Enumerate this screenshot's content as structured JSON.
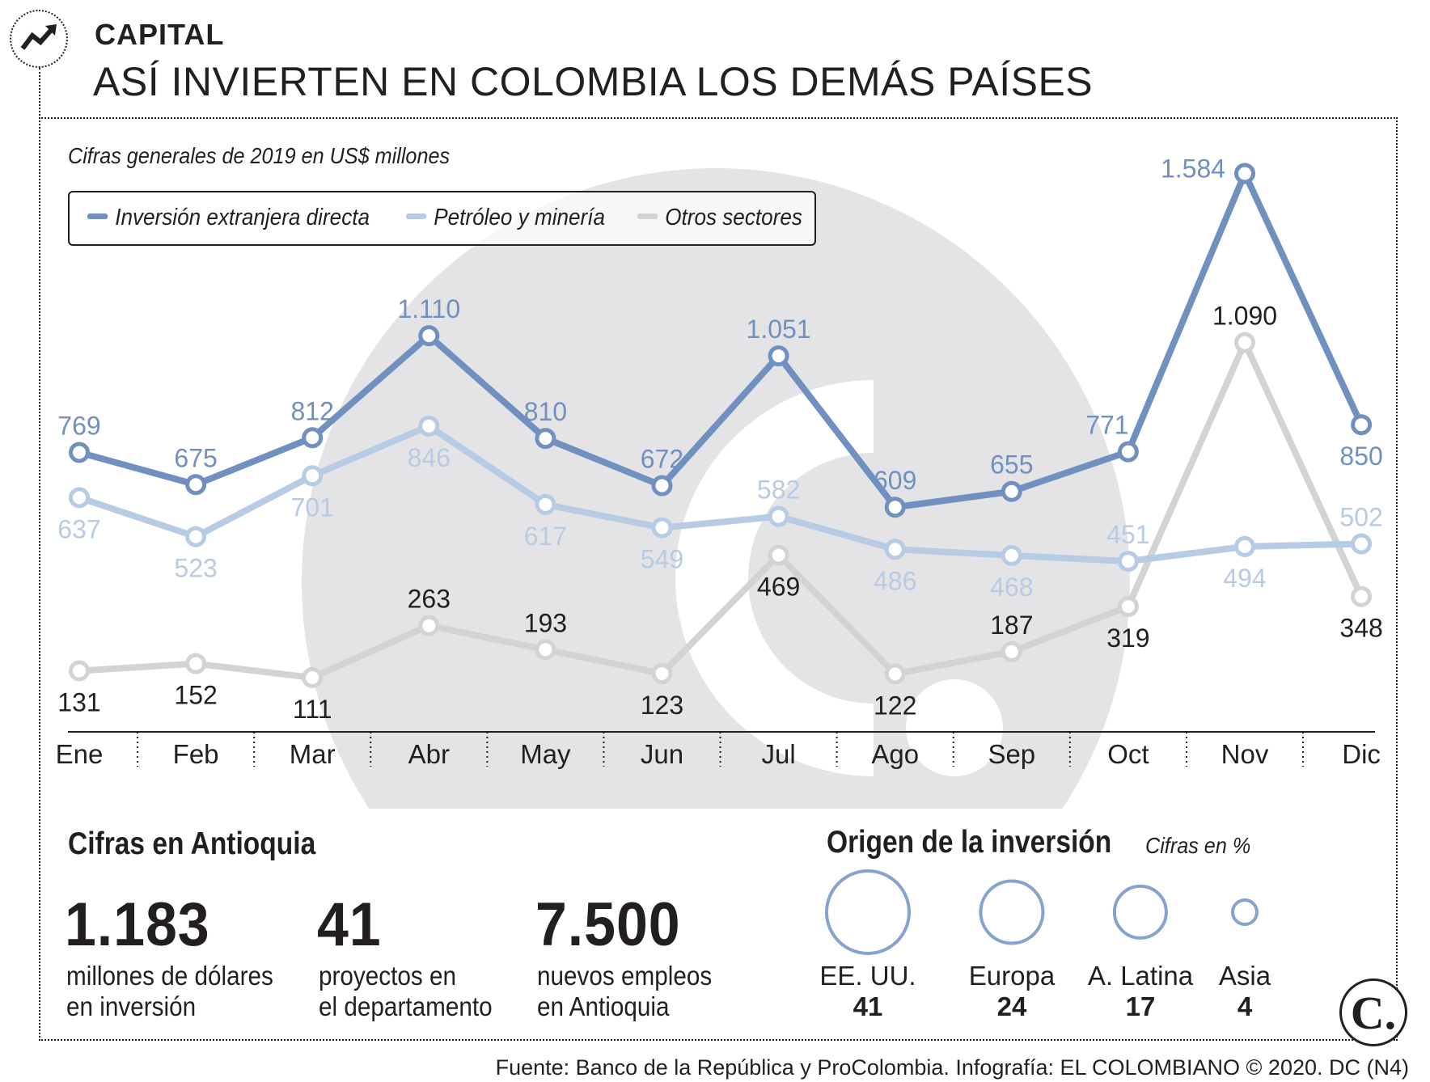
{
  "header": {
    "section": "CAPITAL",
    "title": "ASÍ INVIERTEN EN COLOMBIA LOS DEMÁS PAÍSES",
    "subtitle": "Cifras generales de 2019 en US$ millones"
  },
  "colors": {
    "ied": "#7090c0",
    "petroleo": "#b8cbe4",
    "otros": "#d3d3d6",
    "text": "#231f20",
    "watermark": "#e4e4e6"
  },
  "chart_data": {
    "type": "line",
    "title": "ASÍ INVIERTEN EN COLOMBIA LOS DEMÁS PAÍSES",
    "subtitle": "Cifras generales de 2019 en US$ millones",
    "categories": [
      "Ene",
      "Feb",
      "Mar",
      "Abr",
      "May",
      "Jun",
      "Jul",
      "Ago",
      "Sep",
      "Oct",
      "Nov",
      "Dic"
    ],
    "series": [
      {
        "name": "Inversión extranjera directa",
        "values": [
          769,
          675,
          812,
          1110,
          810,
          672,
          1051,
          609,
          655,
          771,
          1584,
          850
        ],
        "labels": [
          "769",
          "675",
          "812",
          "1.110",
          "810",
          "672",
          "1.051",
          "609",
          "655",
          "771",
          "1.584",
          "850"
        ]
      },
      {
        "name": "Petróleo y minería",
        "values": [
          637,
          523,
          701,
          846,
          617,
          549,
          582,
          486,
          468,
          451,
          494,
          502
        ],
        "labels": [
          "637",
          "523",
          "701",
          "846",
          "617",
          "549",
          "582",
          "486",
          "468",
          "451",
          "494",
          "502"
        ]
      },
      {
        "name": "Otros sectores",
        "values": [
          131,
          152,
          111,
          263,
          193,
          123,
          469,
          122,
          187,
          319,
          1090,
          348
        ],
        "labels": [
          "131",
          "152",
          "111",
          "263",
          "193",
          "123",
          "469",
          "122",
          "187",
          "319",
          "1.090",
          "348"
        ]
      }
    ],
    "xlabel": "",
    "ylabel": "US$ millones",
    "ylim": [
      0,
      1650
    ],
    "grid": false,
    "legend": "top-left"
  },
  "antioquia": {
    "title": "Cifras en Antioquia",
    "stats": [
      {
        "value": "1.183",
        "desc": "millones de dólares\nen inversión"
      },
      {
        "value": "41",
        "desc": "proyectos en\nel departamento"
      },
      {
        "value": "7.500",
        "desc": "nuevos empleos\nen Antioquia"
      }
    ]
  },
  "origen": {
    "title": "Origen de la inversión",
    "note": "Cifras en %",
    "items": [
      {
        "label": "EE. UU.",
        "value": "41",
        "pct": 41
      },
      {
        "label": "Europa",
        "value": "24",
        "pct": 24
      },
      {
        "label": "A. Latina",
        "value": "17",
        "pct": 17
      },
      {
        "label": "Asia",
        "value": "4",
        "pct": 4
      }
    ]
  },
  "footer": {
    "source": "Fuente: Banco de la República y ProColombia. Infografía: EL COLOMBIANO © 2020. DC (N4)",
    "logo": "C."
  }
}
